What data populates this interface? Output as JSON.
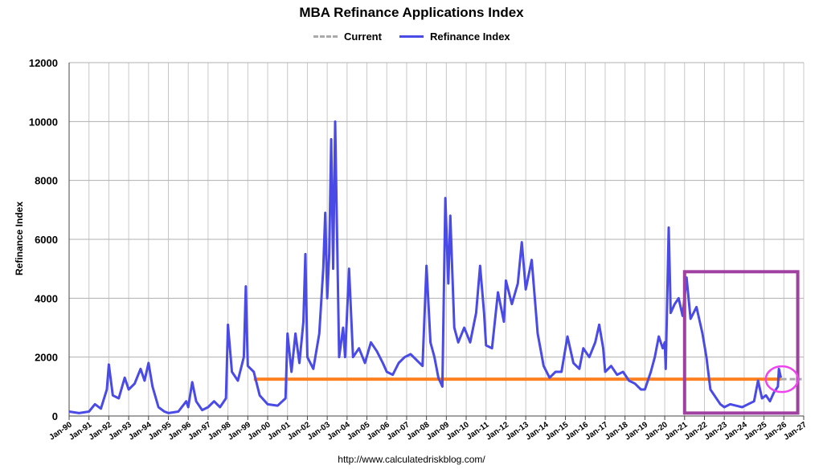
{
  "chart_data": {
    "type": "line",
    "title": "MBA Refinance Applications Index",
    "ylabel": "Refinance Index",
    "xlabel": "",
    "source": "http://www.calculatedriskblog.com/",
    "ylim": [
      0,
      12000
    ],
    "xlim": [
      1990,
      2027
    ],
    "yticks": [
      0,
      2000,
      4000,
      6000,
      8000,
      10000,
      12000
    ],
    "xticks": [
      "Jan-90",
      "Jan-91",
      "Jan-92",
      "Jan-93",
      "Jan-94",
      "Jan-95",
      "Jan-96",
      "Jan-97",
      "Jan-98",
      "Jan-99",
      "Jan-00",
      "Jan-01",
      "Jan-02",
      "Jan-03",
      "Jan-04",
      "Jan-05",
      "Jan-06",
      "Jan-07",
      "Jan-08",
      "Jan-09",
      "Jan-10",
      "Jan-11",
      "Jan-12",
      "Jan-13",
      "Jan-14",
      "Jan-15",
      "Jan-16",
      "Jan-17",
      "Jan-18",
      "Jan-19",
      "Jan-20",
      "Jan-21",
      "Jan-22",
      "Jan-23",
      "Jan-24",
      "Jan-25",
      "Jan-26",
      "Jan-27"
    ],
    "grid": true,
    "legend_placement": "top-center",
    "series": [
      {
        "name": "Current",
        "color": "#aaaaaa",
        "style": "dashed",
        "x": [
          2025.85,
          2026.9
        ],
        "y": [
          1250,
          1250
        ]
      },
      {
        "name": "Refinance Index",
        "color": "#4a4ae6",
        "style": "solid",
        "points": [
          [
            1990.0,
            150
          ],
          [
            1990.5,
            100
          ],
          [
            1991.0,
            150
          ],
          [
            1991.3,
            400
          ],
          [
            1991.6,
            250
          ],
          [
            1991.9,
            900
          ],
          [
            1992.0,
            1750
          ],
          [
            1992.2,
            700
          ],
          [
            1992.5,
            600
          ],
          [
            1992.8,
            1300
          ],
          [
            1993.0,
            900
          ],
          [
            1993.3,
            1100
          ],
          [
            1993.6,
            1600
          ],
          [
            1993.8,
            1200
          ],
          [
            1994.0,
            1800
          ],
          [
            1994.2,
            1000
          ],
          [
            1994.5,
            300
          ],
          [
            1994.8,
            150
          ],
          [
            1995.0,
            100
          ],
          [
            1995.5,
            150
          ],
          [
            1995.9,
            500
          ],
          [
            1996.0,
            300
          ],
          [
            1996.2,
            1150
          ],
          [
            1996.4,
            500
          ],
          [
            1996.7,
            200
          ],
          [
            1997.0,
            300
          ],
          [
            1997.3,
            500
          ],
          [
            1997.6,
            300
          ],
          [
            1997.9,
            600
          ],
          [
            1998.0,
            3100
          ],
          [
            1998.2,
            1500
          ],
          [
            1998.5,
            1200
          ],
          [
            1998.8,
            2000
          ],
          [
            1998.9,
            4400
          ],
          [
            1999.0,
            1700
          ],
          [
            1999.3,
            1500
          ],
          [
            1999.6,
            700
          ],
          [
            2000.0,
            400
          ],
          [
            2000.5,
            350
          ],
          [
            2000.9,
            600
          ],
          [
            2001.0,
            2800
          ],
          [
            2001.2,
            1500
          ],
          [
            2001.4,
            2800
          ],
          [
            2001.6,
            1800
          ],
          [
            2001.8,
            3200
          ],
          [
            2001.9,
            5500
          ],
          [
            2002.0,
            2000
          ],
          [
            2002.3,
            1600
          ],
          [
            2002.6,
            2800
          ],
          [
            2002.8,
            5000
          ],
          [
            2002.9,
            6900
          ],
          [
            2003.0,
            4000
          ],
          [
            2003.1,
            5500
          ],
          [
            2003.2,
            9400
          ],
          [
            2003.3,
            5000
          ],
          [
            2003.4,
            10000
          ],
          [
            2003.5,
            6000
          ],
          [
            2003.6,
            2000
          ],
          [
            2003.8,
            3000
          ],
          [
            2003.9,
            2000
          ],
          [
            2004.1,
            5000
          ],
          [
            2004.3,
            2000
          ],
          [
            2004.6,
            2300
          ],
          [
            2004.9,
            1800
          ],
          [
            2005.2,
            2500
          ],
          [
            2005.5,
            2200
          ],
          [
            2005.8,
            1800
          ],
          [
            2006.0,
            1500
          ],
          [
            2006.3,
            1400
          ],
          [
            2006.6,
            1800
          ],
          [
            2006.9,
            2000
          ],
          [
            2007.2,
            2100
          ],
          [
            2007.5,
            1900
          ],
          [
            2007.8,
            1700
          ],
          [
            2008.0,
            5100
          ],
          [
            2008.2,
            2500
          ],
          [
            2008.4,
            2000
          ],
          [
            2008.6,
            1300
          ],
          [
            2008.8,
            1000
          ],
          [
            2008.95,
            7400
          ],
          [
            2009.1,
            4500
          ],
          [
            2009.2,
            6800
          ],
          [
            2009.4,
            3000
          ],
          [
            2009.6,
            2500
          ],
          [
            2009.9,
            3000
          ],
          [
            2010.2,
            2500
          ],
          [
            2010.5,
            3500
          ],
          [
            2010.7,
            5100
          ],
          [
            2010.9,
            3500
          ],
          [
            2011.0,
            2400
          ],
          [
            2011.3,
            2300
          ],
          [
            2011.6,
            4200
          ],
          [
            2011.9,
            3200
          ],
          [
            2012.0,
            4600
          ],
          [
            2012.3,
            3800
          ],
          [
            2012.6,
            4500
          ],
          [
            2012.8,
            5900
          ],
          [
            2013.0,
            4300
          ],
          [
            2013.3,
            5300
          ],
          [
            2013.6,
            2800
          ],
          [
            2013.9,
            1700
          ],
          [
            2014.2,
            1300
          ],
          [
            2014.5,
            1500
          ],
          [
            2014.8,
            1500
          ],
          [
            2015.1,
            2700
          ],
          [
            2015.4,
            1800
          ],
          [
            2015.7,
            1600
          ],
          [
            2015.9,
            2300
          ],
          [
            2016.2,
            2000
          ],
          [
            2016.5,
            2500
          ],
          [
            2016.7,
            3100
          ],
          [
            2016.9,
            2300
          ],
          [
            2017.0,
            1500
          ],
          [
            2017.3,
            1700
          ],
          [
            2017.6,
            1400
          ],
          [
            2017.9,
            1500
          ],
          [
            2018.2,
            1200
          ],
          [
            2018.5,
            1100
          ],
          [
            2018.8,
            900
          ],
          [
            2019.0,
            900
          ],
          [
            2019.3,
            1500
          ],
          [
            2019.5,
            2000
          ],
          [
            2019.7,
            2700
          ],
          [
            2019.9,
            2300
          ],
          [
            2020.0,
            2500
          ],
          [
            2020.05,
            1600
          ],
          [
            2020.2,
            6400
          ],
          [
            2020.3,
            3500
          ],
          [
            2020.5,
            3800
          ],
          [
            2020.7,
            4000
          ],
          [
            2020.9,
            3400
          ],
          [
            2021.1,
            4700
          ],
          [
            2021.3,
            3300
          ],
          [
            2021.6,
            3700
          ],
          [
            2021.9,
            2800
          ],
          [
            2022.1,
            2000
          ],
          [
            2022.3,
            900
          ],
          [
            2022.6,
            600
          ],
          [
            2022.8,
            400
          ],
          [
            2023.0,
            300
          ],
          [
            2023.3,
            400
          ],
          [
            2023.6,
            350
          ],
          [
            2023.9,
            300
          ],
          [
            2024.2,
            400
          ],
          [
            2024.5,
            500
          ],
          [
            2024.7,
            1200
          ],
          [
            2024.9,
            600
          ],
          [
            2025.1,
            700
          ],
          [
            2025.3,
            500
          ],
          [
            2025.5,
            800
          ],
          [
            2025.7,
            1000
          ],
          [
            2025.75,
            1600
          ],
          [
            2025.85,
            1300
          ]
        ]
      }
    ],
    "annotations": [
      {
        "type": "hline",
        "color": "#ff8020",
        "x": [
          1999.3,
          2025.85
        ],
        "y": 1250
      },
      {
        "type": "rect",
        "color": "#a040a0",
        "x": [
          2021.0,
          2026.7
        ],
        "y": [
          100,
          4900
        ]
      },
      {
        "type": "ellipse",
        "color": "#ee44ee",
        "x": 2025.9,
        "y": 1250
      }
    ]
  }
}
